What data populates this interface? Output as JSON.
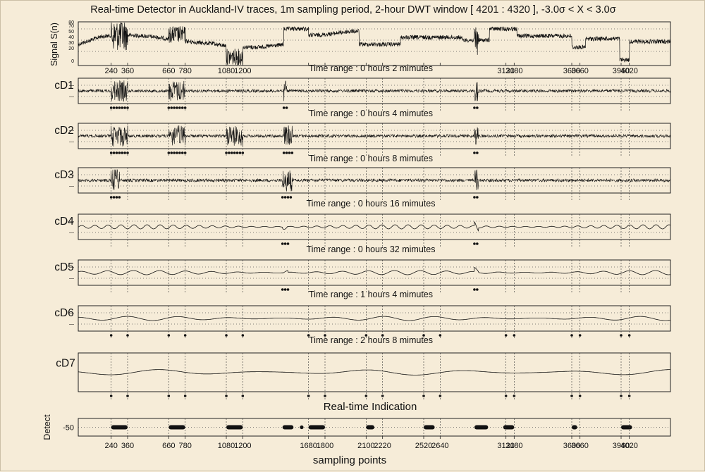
{
  "chart_data": {
    "title": "Real-time Detector in Auckland-IV traces,  1m sampling period,  2-hour DWT window [ 4201 : 4320 ],  -3.0σ < X < 3.0σ",
    "xlabel": "sampling points",
    "signal_panel": {
      "ylabel": "Signal S(n)",
      "yticks": [
        "80",
        "70",
        "50",
        "40",
        "30",
        "20",
        "0"
      ],
      "xticks_top": [
        "240",
        "360",
        "660",
        "780",
        "1080",
        "1200",
        "1680",
        "1800",
        "2100",
        "2220",
        "2520",
        "2640",
        "3120",
        "3180",
        "3600",
        "3660",
        "3960",
        "4020"
      ]
    },
    "levels": [
      {
        "name": "cD1",
        "time_range": "Time range : 0 hours 2 mimutes",
        "bursts": [
          [
            240,
            360
          ],
          [
            660,
            780
          ],
          [
            1500,
            1520
          ],
          [
            2890,
            2920
          ]
        ]
      },
      {
        "name": "cD2",
        "time_range": "Time range : 0 hours 4 mimutes",
        "bursts": [
          [
            240,
            360
          ],
          [
            660,
            780
          ],
          [
            1080,
            1200
          ],
          [
            1500,
            1560
          ],
          [
            2890,
            2920
          ]
        ]
      },
      {
        "name": "cD3",
        "time_range": "Time range : 0 hours 8 mimutes",
        "bursts": [
          [
            240,
            300
          ],
          [
            1490,
            1560
          ],
          [
            2890,
            2920
          ]
        ]
      },
      {
        "name": "cD4",
        "time_range": "Time range : 0 hours 16 mimutes",
        "bursts": [
          [
            1490,
            1530
          ],
          [
            2890,
            2920
          ]
        ]
      },
      {
        "name": "cD5",
        "time_range": "Time range : 0 hours 32 mimutes",
        "bursts": [
          [
            1490,
            1530
          ],
          [
            2890,
            2920
          ]
        ]
      },
      {
        "name": "cD6",
        "time_range": "Time range : 1 hours 4 mimutes",
        "bursts": []
      },
      {
        "name": "cD7",
        "time_range": "Time range : 2 hours 8 mimutes",
        "bursts": []
      }
    ],
    "detect_panel": {
      "title": "Real-time Indication",
      "ylabel": "Detect",
      "ytick": "-50",
      "xticks": [
        "240",
        "360",
        "660",
        "780",
        "1080",
        "1200",
        "1680",
        "1800",
        "2100",
        "2220",
        "2520",
        "2640",
        "3120",
        "3180",
        "3600",
        "3660",
        "3960",
        "4020"
      ],
      "segments": [
        [
          240,
          360
        ],
        [
          660,
          780
        ],
        [
          1080,
          1200
        ],
        [
          1490,
          1570
        ],
        [
          1680,
          1800
        ],
        [
          2100,
          2160
        ],
        [
          2520,
          2600
        ],
        [
          2890,
          2990
        ],
        [
          3100,
          3180
        ],
        [
          3600,
          3640
        ],
        [
          3960,
          4040
        ]
      ],
      "dots": [
        1630
      ]
    },
    "x_range": [
      0,
      4320
    ],
    "markers": [
      240,
      360,
      660,
      780,
      1080,
      1200,
      1680,
      1800,
      2100,
      2220,
      2520,
      2640,
      3120,
      3180,
      3600,
      3660,
      3960,
      4020
    ]
  }
}
